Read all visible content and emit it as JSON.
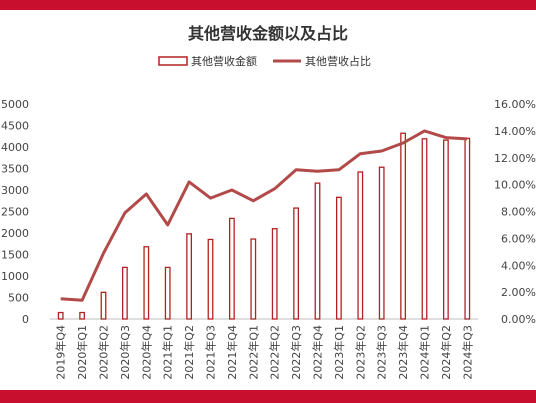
{
  "colors": {
    "accent": "#c8102e",
    "bar_outline": "#b22222",
    "line": "#b24a4a",
    "grid": "#d9d9d9"
  },
  "chart_data": {
    "type": "bar",
    "title": "其他营收金额以及占比",
    "categories": [
      "2019年Q4",
      "2020年Q1",
      "2020年Q2",
      "2020年Q3",
      "2020年Q4",
      "2021年Q1",
      "2021年Q2",
      "2021年Q3",
      "2021年Q4",
      "2022年Q1",
      "2022年Q2",
      "2022年Q3",
      "2022年Q4",
      "2023年Q1",
      "2023年Q2",
      "2023年Q3",
      "2023年Q4",
      "2024年Q1",
      "2024年Q2",
      "2024年Q3"
    ],
    "series": [
      {
        "name": "其他营收金额",
        "type": "bar",
        "axis": "left",
        "values": [
          150,
          150,
          620,
          1200,
          1680,
          1200,
          1980,
          1850,
          2340,
          1860,
          2100,
          2580,
          3160,
          2830,
          3420,
          3530,
          4320,
          4190,
          4160,
          4200
        ]
      },
      {
        "name": "其他营收占比",
        "type": "line",
        "axis": "right",
        "values": [
          1.5,
          1.4,
          4.9,
          7.9,
          9.3,
          7.0,
          10.2,
          9.0,
          9.6,
          8.8,
          9.7,
          11.1,
          11.0,
          11.1,
          12.3,
          12.5,
          13.1,
          14.0,
          13.5,
          13.4
        ]
      }
    ],
    "ylim_left": [
      0,
      5000
    ],
    "ylim_right": [
      0,
      16
    ],
    "yticks_left": [
      "0",
      "500",
      "1000",
      "1500",
      "2000",
      "2500",
      "3000",
      "3500",
      "4000",
      "4500",
      "5000"
    ],
    "yticks_right": [
      "0.00%",
      "2.00%",
      "4.00%",
      "6.00%",
      "8.00%",
      "10.00%",
      "12.00%",
      "14.00%",
      "16.00%"
    ],
    "grid": false,
    "legend": "top"
  }
}
